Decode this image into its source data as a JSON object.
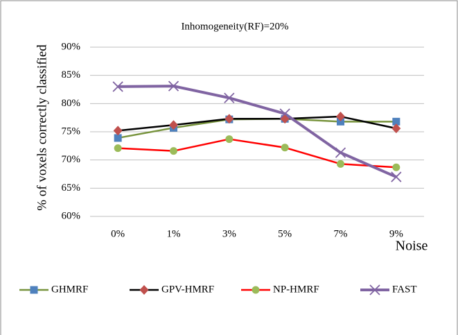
{
  "chart_data": {
    "type": "line",
    "title": "Inhomogeneity(RF)=20%",
    "y_label": "% of voxels correctly classified",
    "x_label": "Noise",
    "categories": [
      "0%",
      "1%",
      "3%",
      "5%",
      "7%",
      "9%"
    ],
    "ylim": [
      60,
      90
    ],
    "yticks": [
      {
        "value": 60,
        "label": "60%"
      },
      {
        "value": 65,
        "label": "65%"
      },
      {
        "value": 70,
        "label": "70%"
      },
      {
        "value": 75,
        "label": "75%"
      },
      {
        "value": 80,
        "label": "80%"
      },
      {
        "value": 85,
        "label": "85%"
      },
      {
        "value": 90,
        "label": "90%"
      }
    ],
    "grid": true,
    "legend": "bottom",
    "series": [
      {
        "name": "GHMRF",
        "color": "#77933c",
        "marker_color": "#4f81bd",
        "marker": "square",
        "values": [
          73.9,
          75.7,
          77.2,
          77.3,
          76.8,
          76.8
        ]
      },
      {
        "name": "GPV-HMRF",
        "color": "#000000",
        "marker_color": "#c0504d",
        "marker": "diamond",
        "values": [
          75.2,
          76.2,
          77.3,
          77.3,
          77.7,
          75.6
        ]
      },
      {
        "name": "NP-HMRF",
        "color": "#ff0000",
        "marker_color": "#9bbb59",
        "marker": "circle",
        "values": [
          72.1,
          71.6,
          73.7,
          72.2,
          69.3,
          68.7
        ]
      },
      {
        "name": "FAST",
        "color": "#8064a2",
        "marker_color": "#8064a2",
        "marker": "x",
        "values": [
          83.0,
          83.1,
          81.0,
          78.2,
          71.3,
          67.0
        ]
      }
    ]
  }
}
